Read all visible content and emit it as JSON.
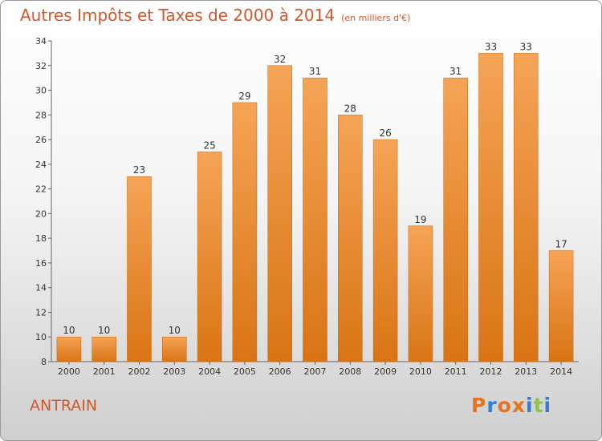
{
  "header": {
    "title": "Autres Impôts et Taxes de 2000 à 2014",
    "subtitle": "(en milliers d'€)"
  },
  "footer": {
    "commune": "ANTRAIN",
    "logo_text": "Proxiti"
  },
  "colors": {
    "title": "#d3572a",
    "bar_top": "#f5a456",
    "bar_bottom": "#d97414",
    "bar_edge": "#c26814"
  },
  "logo_colors": [
    "#e8731c",
    "#2e7fd1",
    "#e8731c",
    "#e8731c",
    "#2e7fd1",
    "#8cc63f",
    "#2e7fd1"
  ],
  "chart_data": {
    "type": "bar",
    "title": "Autres Impôts et Taxes de 2000 à 2014",
    "subtitle": "(en milliers d'€)",
    "categories": [
      "2000",
      "2001",
      "2002",
      "2003",
      "2004",
      "2005",
      "2006",
      "2007",
      "2008",
      "2009",
      "2010",
      "2011",
      "2012",
      "2013",
      "2014"
    ],
    "values": [
      10,
      10,
      23,
      10,
      25,
      29,
      32,
      31,
      28,
      26,
      19,
      31,
      33,
      33,
      17
    ],
    "ylim": [
      8,
      34
    ],
    "yticks": [
      8,
      10,
      12,
      14,
      16,
      18,
      20,
      22,
      24,
      26,
      28,
      30,
      32,
      34
    ],
    "grid": false,
    "legend": "none",
    "xlabel": "",
    "ylabel": ""
  }
}
